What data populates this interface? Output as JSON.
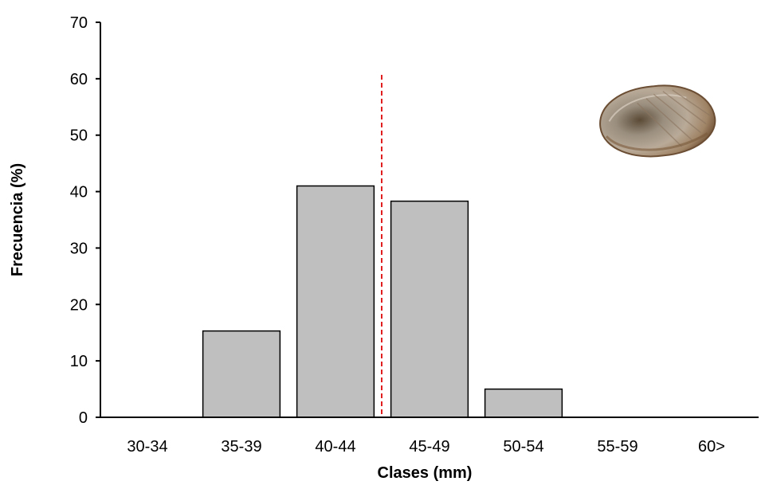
{
  "chart_data": {
    "type": "bar",
    "title": "",
    "xlabel": "Clases (mm)",
    "ylabel": "Frecuencia (%)",
    "categories": [
      "30-34",
      "35-39",
      "40-44",
      "45-49",
      "50-54",
      "55-59",
      "60>"
    ],
    "values": [
      0,
      15.3,
      41,
      38.3,
      5,
      0,
      0
    ],
    "ylim": [
      0,
      70
    ],
    "yticks": [
      0,
      10,
      20,
      30,
      40,
      50,
      60,
      70
    ],
    "grid": false,
    "legend": "none",
    "bar_color": "#bfbfbf",
    "bar_edge_color": "#000000",
    "reference_line": {
      "style": "dashed",
      "color": "#e02020",
      "x_position": "between 40-44 and 45-49"
    },
    "image": {
      "subject": "shell"
    }
  }
}
